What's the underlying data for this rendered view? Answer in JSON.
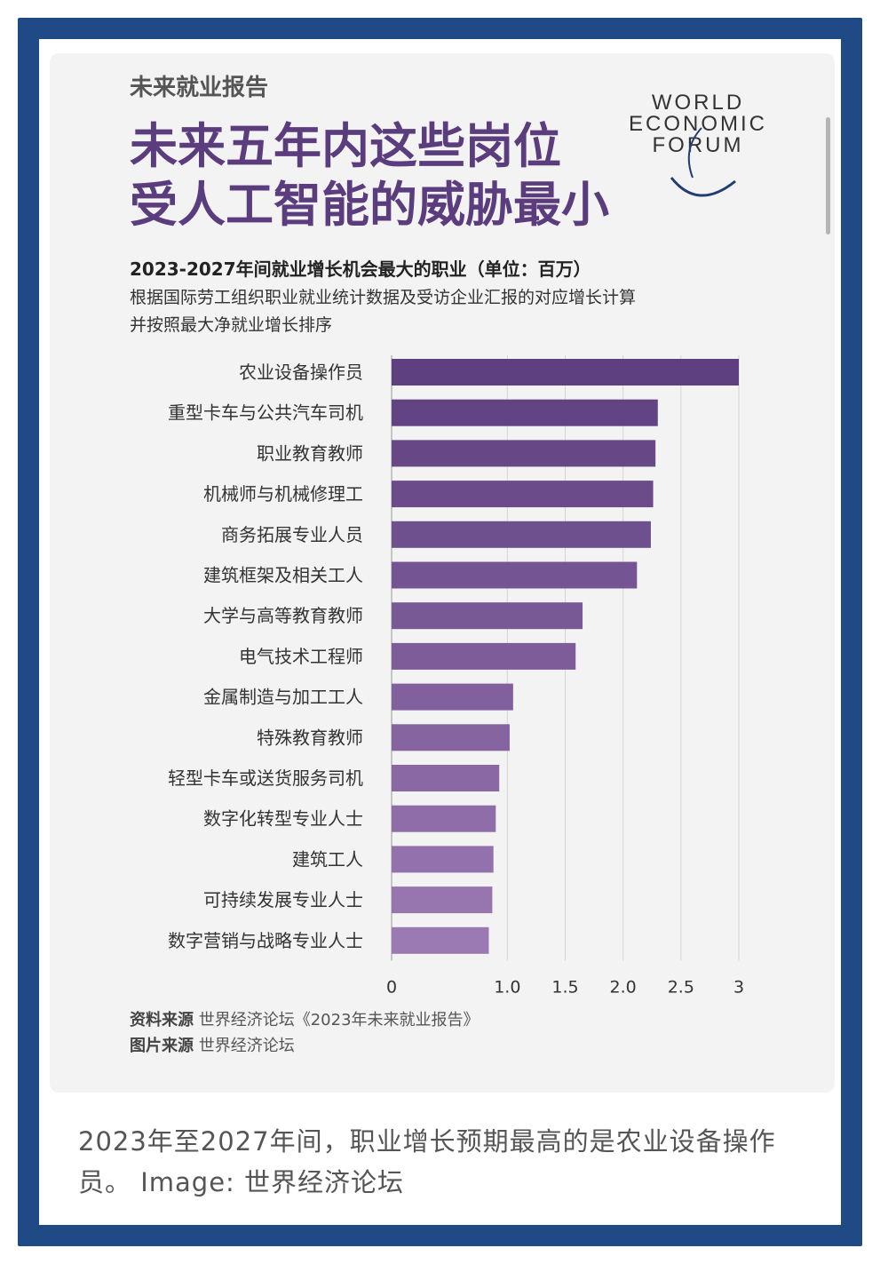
{
  "kicker": "未来就业报告",
  "headline": [
    "未来五年内这些岗位",
    "受人工智能的威胁最小"
  ],
  "logo": [
    "WORLD",
    "ECONOMIC",
    "FORUM"
  ],
  "subtitle": "2023-2027年间就业增长机会最大的职业（单位：百万）",
  "note": [
    "根据国际劳工组织职业就业统计数据及受访企业汇报的对应增长计算",
    "并按照最大净就业增长排序"
  ],
  "source": {
    "data_label": "资料来源",
    "data_text": "世界经济论坛《2023年未来就业报告》",
    "image_label": "图片来源",
    "image_text": "世界经济论坛"
  },
  "caption": "2023年至2027年间，职业增长预期最高的是农业设备操作员。 Image: 世界经济论坛",
  "colors": {
    "bar_dark": "#5e3f7f",
    "bar_light": "#9b79b3",
    "frame": "#1f4a86",
    "headline": "#5b3d7e"
  },
  "chart_data": {
    "type": "bar",
    "orientation": "horizontal",
    "categories": [
      "农业设备操作员",
      "重型卡车与公共汽车司机",
      "职业教育教师",
      "机械师与机械修理工",
      "商务拓展专业人员",
      "建筑框架及相关工人",
      "大学与高等教育教师",
      "电气技术工程师",
      "金属制造与加工工人",
      "特殊教育教师",
      "轻型卡车或送货服务司机",
      "数字化转型专业人士",
      "建筑工人",
      "可持续发展专业人士",
      "数字营销与战略专业人士"
    ],
    "values": [
      3.0,
      2.3,
      2.28,
      2.26,
      2.24,
      2.12,
      1.65,
      1.59,
      1.05,
      1.02,
      0.93,
      0.9,
      0.88,
      0.87,
      0.84
    ],
    "xlim": [
      0,
      3
    ],
    "xticks": [
      "0",
      "1.0",
      "1.5",
      "2.0",
      "2.5",
      "3"
    ],
    "xtick_values": [
      0,
      1.0,
      1.5,
      2.0,
      2.5,
      3
    ],
    "grid": true
  }
}
